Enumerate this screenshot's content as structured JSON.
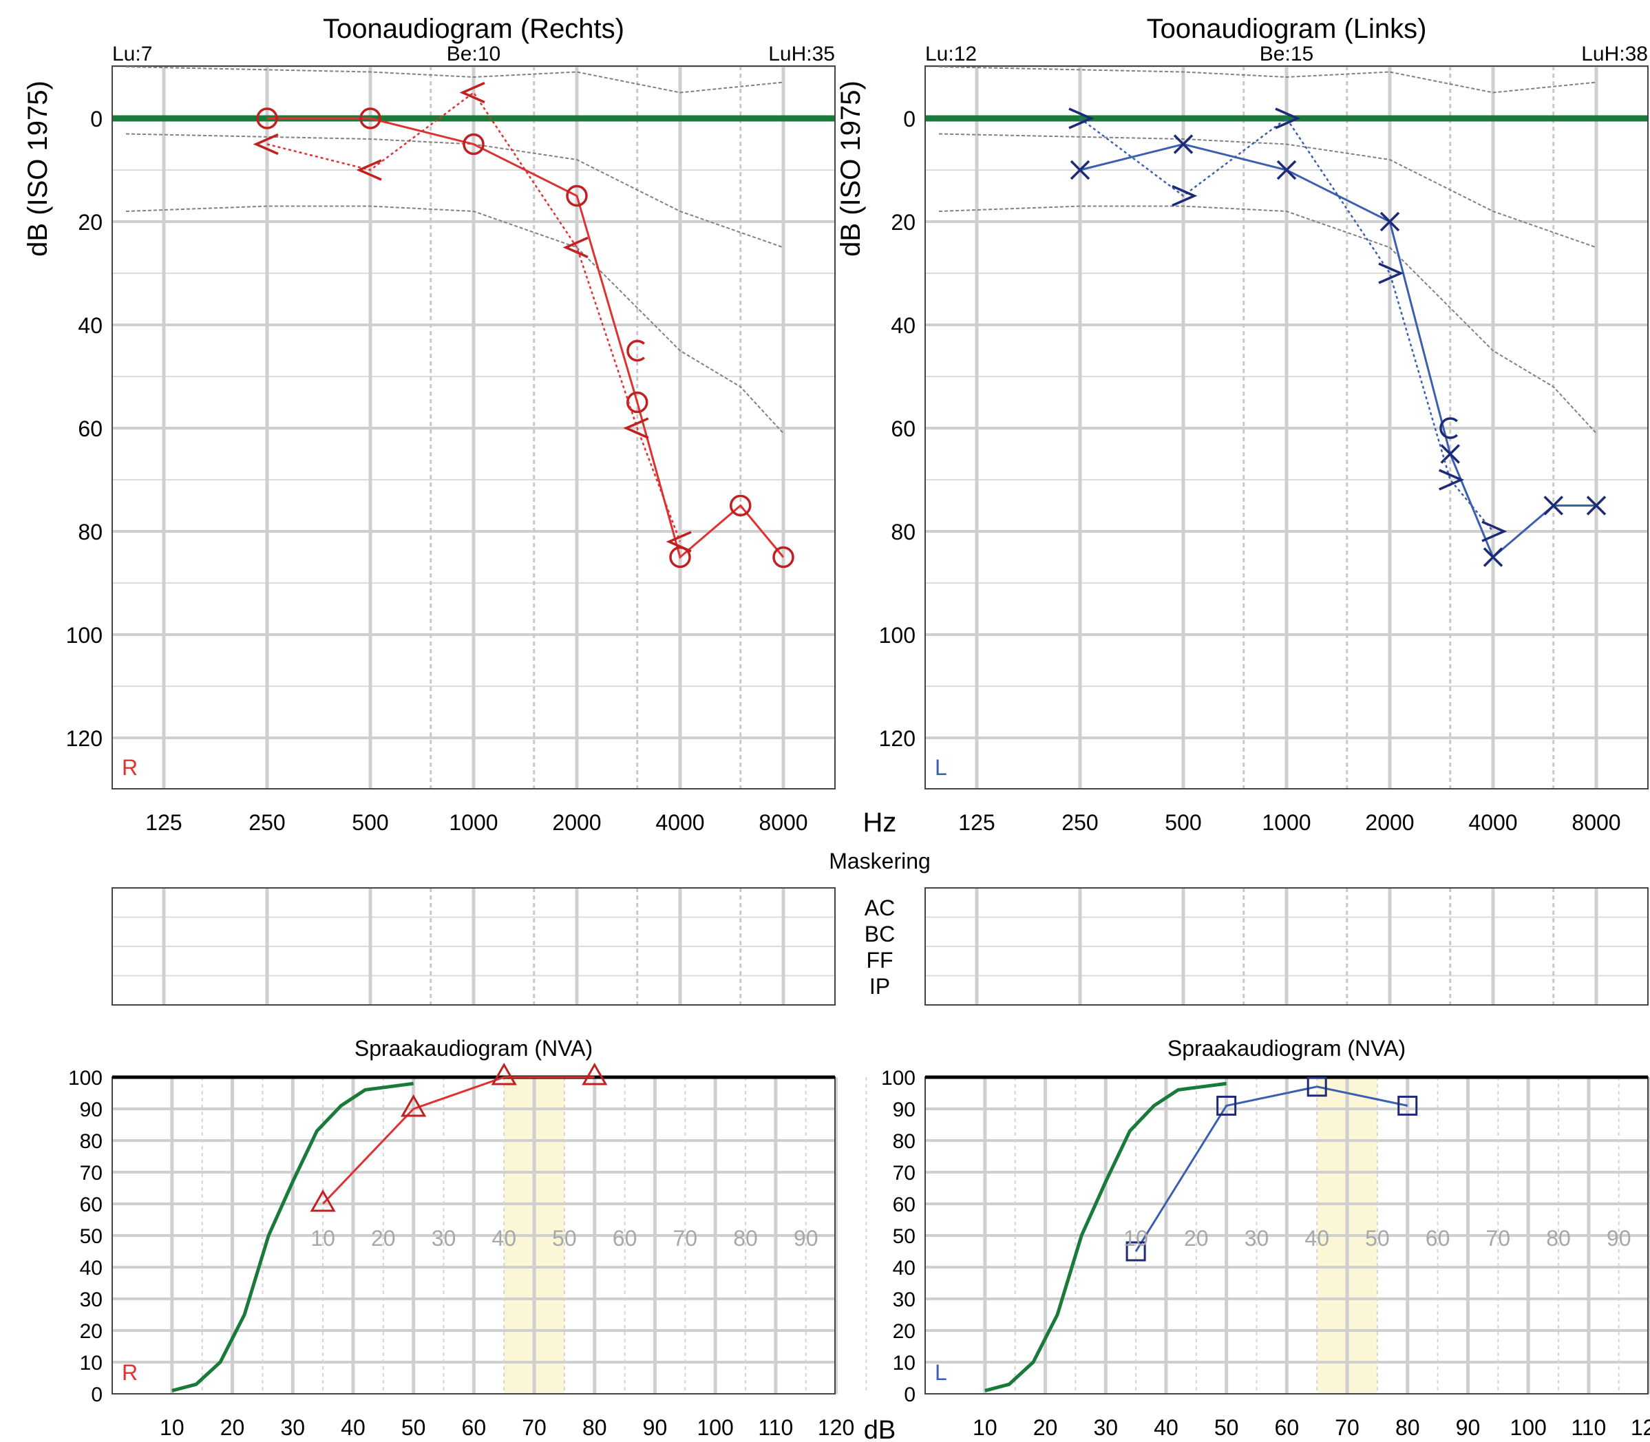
{
  "axis_labels": {
    "db_iso": "dB (ISO 1975)",
    "hz": "Hz",
    "db": "dB"
  },
  "masking": {
    "title": "Maskering",
    "rows": [
      "AC",
      "BC",
      "FF",
      "IP"
    ]
  },
  "colors": {
    "right": "#e03030",
    "right_marker": "#c02020",
    "left": "#3a5fb0",
    "left_marker": "#1c2a78",
    "reference_green": "#1a7a3a",
    "norm_gray": "#808080",
    "comfort_band": "#fbf6d6"
  },
  "tone_frequency_ticks": [
    "125",
    "250",
    "500",
    "1000",
    "2000",
    "4000",
    "8000"
  ],
  "tone_y_ticks": [
    "0",
    "20",
    "40",
    "60",
    "80",
    "100",
    "120"
  ],
  "speech_x_ticks": [
    "10",
    "20",
    "30",
    "40",
    "50",
    "60",
    "70",
    "80",
    "90",
    "100",
    "110",
    "120"
  ],
  "speech_y_ticks": [
    "0",
    "10",
    "20",
    "30",
    "40",
    "50",
    "60",
    "70",
    "80",
    "90",
    "100"
  ],
  "speech_inner_ticks": [
    "10",
    "20",
    "30",
    "40",
    "50",
    "60",
    "70",
    "80",
    "90"
  ],
  "chart_data": [
    {
      "type": "line",
      "title": "Toonaudiogram (Rechts)",
      "side_label": "R",
      "header_left": "Lu:7",
      "header_center": "Be:10",
      "header_right": "LuH:35",
      "ylabel": "dB (ISO 1975)",
      "xlabel": "Hz",
      "x_scale": "log",
      "ylim": [
        -10,
        130
      ],
      "y_inverted": true,
      "norm_lines": [
        {
          "x": [
            125,
            500,
            1000,
            2000,
            4000,
            8000
          ],
          "y": [
            -10,
            -9,
            -8,
            -9,
            -5,
            -7
          ]
        },
        {
          "x": [
            125,
            500,
            1000,
            2000,
            4000,
            8000
          ],
          "y": [
            3,
            4,
            5,
            8,
            18,
            25
          ]
        },
        {
          "x": [
            125,
            250,
            500,
            1000,
            2000,
            4000,
            6000,
            8000
          ],
          "y": [
            18,
            17,
            17,
            18,
            25,
            45,
            52,
            61
          ]
        }
      ],
      "series": [
        {
          "name": "",
          "kind": "air",
          "marker": "circle",
          "line": "solid",
          "x": [
            250,
            500,
            1000,
            2000,
            3000,
            4000,
            6000,
            8000
          ],
          "y": [
            0,
            0,
            5,
            15,
            55,
            85,
            75,
            85
          ]
        },
        {
          "name": "",
          "kind": "bone",
          "marker": "lt",
          "line": "dotted",
          "x": [
            250,
            500,
            1000,
            2000,
            3000,
            4000
          ],
          "y": [
            5,
            10,
            -5,
            25,
            60,
            82
          ]
        },
        {
          "name": "",
          "kind": "ucl",
          "marker": "C",
          "line": "none",
          "x": [
            3000
          ],
          "y": [
            45
          ]
        }
      ]
    },
    {
      "type": "line",
      "title": "Toonaudiogram (Links)",
      "side_label": "L",
      "header_left": "Lu:12",
      "header_center": "Be:15",
      "header_right": "LuH:38",
      "ylabel": "dB (ISO 1975)",
      "xlabel": "Hz",
      "x_scale": "log",
      "ylim": [
        -10,
        130
      ],
      "y_inverted": true,
      "norm_lines": [
        {
          "x": [
            125,
            500,
            1000,
            2000,
            4000,
            8000
          ],
          "y": [
            -10,
            -9,
            -8,
            -9,
            -5,
            -7
          ]
        },
        {
          "x": [
            125,
            500,
            1000,
            2000,
            4000,
            8000
          ],
          "y": [
            3,
            4,
            5,
            8,
            18,
            25
          ]
        },
        {
          "x": [
            125,
            250,
            500,
            1000,
            2000,
            4000,
            6000,
            8000
          ],
          "y": [
            18,
            17,
            17,
            18,
            25,
            45,
            52,
            61
          ]
        }
      ],
      "series": [
        {
          "name": "",
          "kind": "air",
          "marker": "x",
          "line": "solid",
          "x": [
            250,
            500,
            1000,
            2000,
            3000,
            4000,
            6000,
            8000
          ],
          "y": [
            10,
            5,
            10,
            20,
            65,
            85,
            75,
            75
          ]
        },
        {
          "name": "",
          "kind": "bone",
          "marker": "gt",
          "line": "dotted",
          "x": [
            250,
            500,
            1000,
            2000,
            3000,
            4000
          ],
          "y": [
            0,
            15,
            0,
            30,
            70,
            80
          ]
        },
        {
          "name": "",
          "kind": "ucl",
          "marker": "C",
          "line": "none",
          "x": [
            3000
          ],
          "y": [
            60
          ]
        }
      ]
    },
    {
      "type": "line",
      "title": "Spraakaudiogram (NVA)",
      "side_label": "R",
      "xlabel": "dB",
      "xlim": [
        5,
        125
      ],
      "ylim": [
        0,
        100
      ],
      "comfort_band": [
        65,
        75
      ],
      "reference_curve": {
        "x": [
          10,
          14,
          18,
          22,
          26,
          30,
          34,
          38,
          42,
          46,
          50
        ],
        "y": [
          1,
          3,
          10,
          25,
          50,
          67,
          83,
          91,
          96,
          97,
          98
        ]
      },
      "series": [
        {
          "name": "",
          "marker": "triangle",
          "x": [
            35,
            50,
            65,
            80
          ],
          "y": [
            60,
            90,
            100,
            100
          ]
        }
      ]
    },
    {
      "type": "line",
      "title": "Spraakaudiogram (NVA)",
      "side_label": "L",
      "xlabel": "dB",
      "xlim": [
        5,
        125
      ],
      "ylim": [
        0,
        100
      ],
      "comfort_band": [
        65,
        75
      ],
      "reference_curve": {
        "x": [
          10,
          14,
          18,
          22,
          26,
          30,
          34,
          38,
          42,
          46,
          50
        ],
        "y": [
          1,
          3,
          10,
          25,
          50,
          67,
          83,
          91,
          96,
          97,
          98
        ]
      },
      "series": [
        {
          "name": "",
          "marker": "square",
          "x": [
            35,
            50,
            65,
            80
          ],
          "y": [
            45,
            91,
            97,
            91
          ]
        }
      ]
    }
  ]
}
